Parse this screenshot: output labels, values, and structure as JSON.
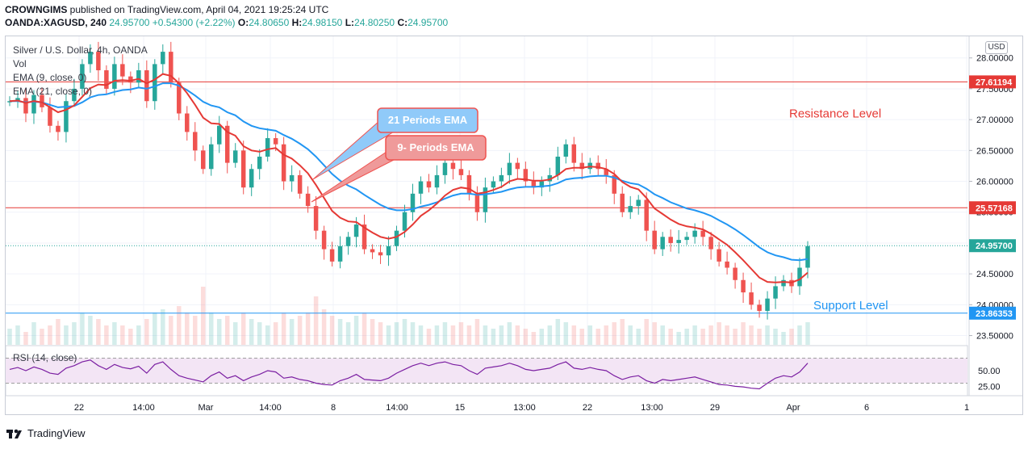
{
  "header": {
    "line1_author": "CROWNGIMS",
    "line1_rest": "published on TradingView.com, April 04, 2021 19:25:24 UTC",
    "symbol": "OANDA:XAGUSD, 240",
    "last": "24.95700",
    "change": "+0.54300 (+2.22%)",
    "o_label": "O:",
    "o": "24.80650",
    "h_label": "H:",
    "h": "24.98150",
    "l_label": "L:",
    "l": "24.80250",
    "c_label": "C:",
    "c": "24.95700"
  },
  "legend": {
    "title": "Silver / U.S. Dollar, 4h, OANDA",
    "vol": "Vol",
    "ema9": "EMA (9, close, 0)",
    "ema21": "EMA (21, close, 0)"
  },
  "rsi_label": "RSI (14, close)",
  "currency_badge": "USD",
  "footer_brand": "TradingView",
  "colors": {
    "up": "#26a69a",
    "down": "#ef5350",
    "ema9": "#e53935",
    "ema21": "#2196f3",
    "resistance": "#e53935",
    "support": "#2196f3",
    "rsi": "#7b1fa2"
  },
  "chart_data": {
    "type": "candlestick",
    "symbol": "Silver / U.S. Dollar",
    "timeframe": "4h",
    "ylim": [
      23.35,
      28.35
    ],
    "price_ticks": [
      {
        "label": "28.00000",
        "v": 28.0
      },
      {
        "label": "27.50000",
        "v": 27.5
      },
      {
        "label": "27.00000",
        "v": 27.0
      },
      {
        "label": "26.50000",
        "v": 26.5
      },
      {
        "label": "26.00000",
        "v": 26.0
      },
      {
        "label": "25.50000",
        "v": 25.5
      },
      {
        "label": "25.00000",
        "v": 25.0
      },
      {
        "label": "24.50000",
        "v": 24.5
      },
      {
        "label": "24.00000",
        "v": 24.0
      },
      {
        "label": "23.50000",
        "v": 23.5
      }
    ],
    "x_ticks": [
      "22",
      "14:00",
      "Mar",
      "14:00",
      "8",
      "14:00",
      "15",
      "13:00",
      "22",
      "13:00",
      "29",
      "Apr",
      "6",
      "1"
    ],
    "levels": [
      {
        "name": "Resistance Level",
        "label": "27.61194",
        "value": 27.61194,
        "color": "#e53935"
      },
      {
        "name": "",
        "label": "25.57168",
        "value": 25.57168,
        "color": "#e53935"
      },
      {
        "name": "Support Level",
        "label": "23.86353",
        "value": 23.86353,
        "color": "#2196f3"
      }
    ],
    "last_price": {
      "label": "24.95700",
      "value": 24.957
    },
    "annotations": [
      {
        "text": "21 Periods EMA"
      },
      {
        "text": "9- Periods EMA"
      }
    ],
    "closes": [
      27.3,
      27.35,
      27.1,
      27.4,
      27.2,
      26.9,
      26.8,
      27.3,
      27.5,
      27.9,
      28.1,
      27.8,
      27.5,
      27.9,
      27.7,
      27.6,
      27.8,
      27.3,
      27.9,
      28.1,
      27.6,
      27.1,
      26.8,
      26.5,
      26.2,
      26.6,
      26.9,
      26.3,
      26.5,
      25.9,
      26.2,
      26.4,
      26.7,
      26.6,
      26.0,
      26.1,
      25.8,
      25.6,
      25.2,
      24.9,
      24.7,
      24.95,
      25.1,
      25.3,
      24.9,
      24.85,
      24.8,
      24.95,
      25.2,
      25.5,
      25.8,
      26.0,
      25.9,
      26.1,
      26.3,
      26.2,
      26.1,
      25.8,
      25.5,
      25.9,
      26.0,
      26.1,
      26.3,
      26.2,
      26.0,
      25.9,
      26.0,
      26.1,
      26.4,
      26.6,
      26.3,
      26.2,
      26.3,
      26.2,
      26.1,
      25.8,
      25.5,
      25.6,
      25.7,
      25.2,
      24.9,
      25.1,
      25.0,
      25.05,
      25.1,
      25.2,
      25.1,
      24.9,
      24.7,
      24.6,
      24.4,
      24.2,
      24.0,
      23.9,
      24.1,
      24.3,
      24.4,
      24.3,
      24.6,
      24.95
    ],
    "ema9": [
      27.3,
      27.31,
      27.27,
      27.3,
      27.28,
      27.2,
      27.12,
      27.16,
      27.23,
      27.37,
      27.51,
      27.57,
      27.56,
      27.63,
      27.64,
      27.63,
      27.66,
      27.59,
      27.65,
      27.74,
      27.71,
      27.59,
      27.43,
      27.24,
      27.03,
      26.94,
      26.93,
      26.8,
      26.74,
      26.57,
      26.5,
      26.48,
      26.52,
      26.54,
      26.43,
      26.37,
      26.26,
      26.13,
      25.94,
      25.73,
      25.52,
      25.41,
      25.35,
      25.34,
      25.25,
      25.17,
      25.1,
      25.07,
      25.1,
      25.18,
      25.3,
      25.44,
      25.53,
      25.64,
      25.77,
      25.86,
      25.9,
      25.88,
      25.8,
      25.82,
      25.86,
      25.91,
      26.0,
      26.04,
      26.03,
      26.01,
      26.01,
      26.03,
      26.1,
      26.2,
      26.22,
      26.22,
      26.24,
      26.23,
      26.2,
      26.12,
      25.99,
      25.91,
      25.87,
      25.73,
      25.56,
      25.47,
      25.38,
      25.31,
      25.27,
      25.25,
      25.22,
      25.15,
      25.06,
      24.97,
      24.85,
      24.72,
      24.58,
      24.44,
      24.37,
      24.36,
      24.37,
      24.36,
      24.41,
      24.52
    ],
    "ema21": [
      27.3,
      27.3,
      27.28,
      27.29,
      27.28,
      27.24,
      27.2,
      27.21,
      27.22,
      27.28,
      27.36,
      27.4,
      27.41,
      27.45,
      27.48,
      27.49,
      27.52,
      27.5,
      27.54,
      27.59,
      27.59,
      27.55,
      27.48,
      27.39,
      27.29,
      27.23,
      27.2,
      27.12,
      27.07,
      26.97,
      26.9,
      26.86,
      26.84,
      26.82,
      26.75,
      26.69,
      26.61,
      26.52,
      26.4,
      26.26,
      26.12,
      26.01,
      25.93,
      25.87,
      25.78,
      25.7,
      25.62,
      25.56,
      25.53,
      25.53,
      25.55,
      25.59,
      25.62,
      25.66,
      25.72,
      25.77,
      25.8,
      25.8,
      25.78,
      25.79,
      25.81,
      25.83,
      25.87,
      25.9,
      25.91,
      25.91,
      25.92,
      25.93,
      25.97,
      26.03,
      26.05,
      26.06,
      26.08,
      26.09,
      26.09,
      26.06,
      26.01,
      25.97,
      25.95,
      25.88,
      25.79,
      25.73,
      25.66,
      25.61,
      25.56,
      25.53,
      25.49,
      25.44,
      25.37,
      25.3,
      25.22,
      25.13,
      25.03,
      24.93,
      24.85,
      24.8,
      24.77,
      24.73,
      24.72,
      24.74
    ],
    "rsi_ticks": [
      {
        "label": "50.00",
        "v": 50
      },
      {
        "label": "25.00",
        "v": 25
      }
    ],
    "rsi_bands": [
      70,
      30
    ],
    "rsi": [
      52,
      55,
      50,
      56,
      52,
      46,
      44,
      54,
      58,
      64,
      67,
      58,
      52,
      60,
      55,
      53,
      57,
      46,
      60,
      64,
      52,
      42,
      38,
      35,
      32,
      42,
      48,
      38,
      42,
      34,
      40,
      44,
      50,
      48,
      38,
      40,
      36,
      34,
      30,
      28,
      27,
      34,
      38,
      44,
      36,
      35,
      34,
      38,
      46,
      52,
      58,
      62,
      58,
      62,
      64,
      60,
      58,
      50,
      44,
      54,
      56,
      58,
      62,
      58,
      52,
      50,
      52,
      54,
      60,
      64,
      54,
      52,
      55,
      52,
      50,
      42,
      36,
      40,
      42,
      34,
      30,
      36,
      34,
      36,
      38,
      40,
      36,
      32,
      28,
      27,
      25,
      24,
      22,
      21,
      30,
      38,
      42,
      40,
      48,
      62
    ],
    "volume": [
      0.25,
      0.3,
      0.2,
      0.35,
      0.25,
      0.3,
      0.4,
      0.3,
      0.35,
      0.5,
      0.45,
      0.4,
      0.3,
      0.35,
      0.3,
      0.25,
      0.3,
      0.4,
      0.5,
      0.55,
      0.45,
      0.6,
      0.5,
      0.45,
      0.9,
      0.5,
      0.4,
      0.45,
      0.35,
      0.5,
      0.4,
      0.35,
      0.3,
      0.35,
      0.5,
      0.4,
      0.45,
      0.5,
      0.75,
      0.55,
      0.45,
      0.4,
      0.35,
      0.45,
      0.5,
      0.4,
      0.35,
      0.3,
      0.35,
      0.4,
      0.35,
      0.3,
      0.25,
      0.3,
      0.35,
      0.3,
      0.35,
      0.3,
      0.4,
      0.3,
      0.25,
      0.3,
      0.35,
      0.3,
      0.25,
      0.2,
      0.25,
      0.3,
      0.4,
      0.35,
      0.3,
      0.25,
      0.3,
      0.25,
      0.3,
      0.35,
      0.4,
      0.3,
      0.25,
      0.4,
      0.35,
      0.3,
      0.25,
      0.2,
      0.25,
      0.3,
      0.25,
      0.3,
      0.35,
      0.3,
      0.25,
      0.35,
      0.3,
      0.25,
      0.3,
      0.25,
      0.2,
      0.25,
      0.3,
      0.35
    ]
  }
}
